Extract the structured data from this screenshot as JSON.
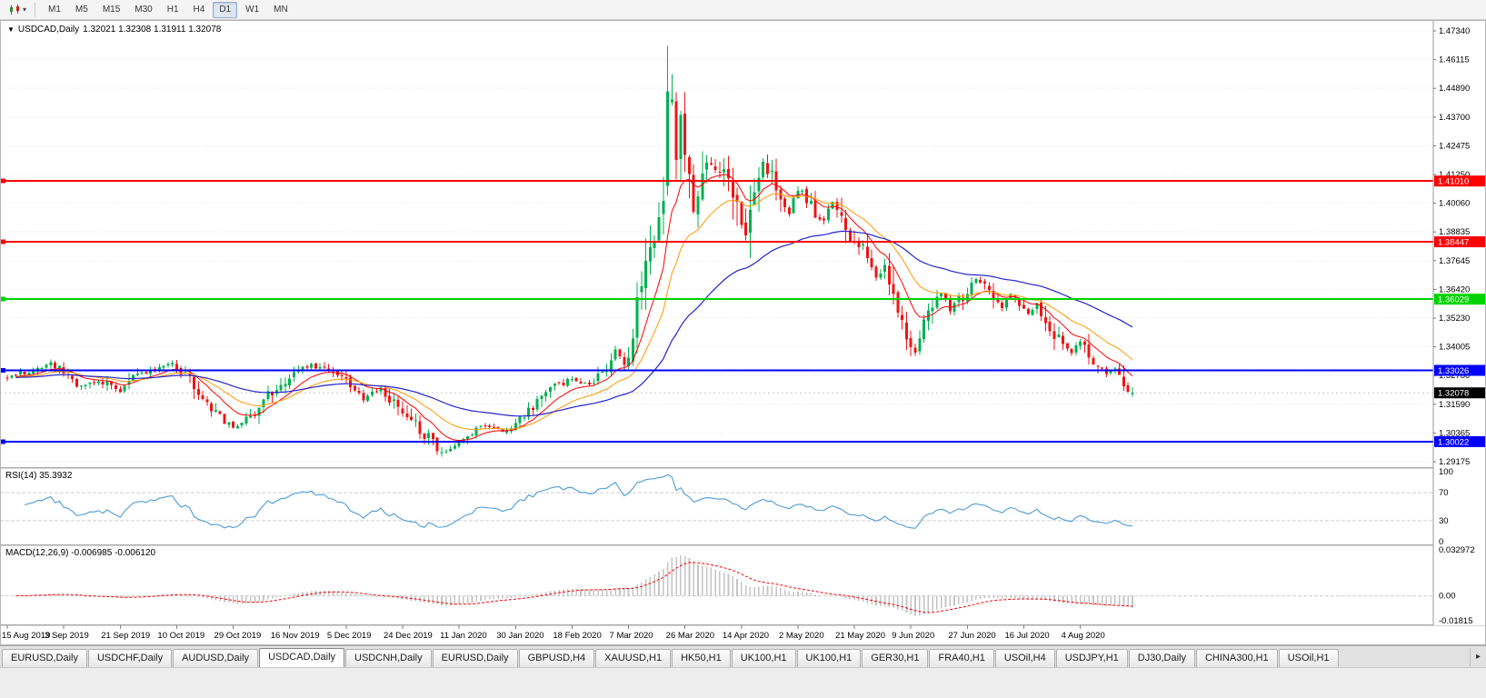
{
  "icons": {
    "title_marker": "▼",
    "toolbar_caret": "▾",
    "tab_scroll_right": "▸"
  },
  "toolbar": {
    "timeframes": [
      "M1",
      "M5",
      "M15",
      "M30",
      "H1",
      "H4",
      "D1",
      "W1",
      "MN"
    ],
    "active_timeframe": "D1"
  },
  "chart": {
    "title": "USDCAD,Daily",
    "ohlc_text": "1.32021 1.32308 1.31911 1.32078",
    "current_price": "1.32078"
  },
  "rsi_panel": {
    "label": "RSI(14) 35.3932",
    "axis_labels": [
      "100",
      "70",
      "30",
      "0"
    ],
    "axis_values": [
      100,
      70,
      30,
      0
    ],
    "dashed_levels": [
      70,
      30
    ]
  },
  "macd_panel": {
    "label": "MACD(12,26,9) -0.006985 -0.006120",
    "axis_labels": [
      "0.032972",
      "0.00",
      "-0.01815"
    ],
    "axis_values": [
      0.032972,
      0,
      -0.01815
    ]
  },
  "tabs": {
    "active_index": 3,
    "items": [
      "EURUSD,Daily",
      "USDCHF,Daily",
      "AUDUSD,Daily",
      "USDCAD,Daily",
      "USDCNH,Daily",
      "EURUSD,Daily",
      "GBPUSD,H4",
      "XAUUSD,H1",
      "HK50,H1",
      "UK100,H1",
      "UK100,H1",
      "GER30,H1",
      "FRA40,H1",
      "USOil,H4",
      "USDJPY,H1",
      "DJ30,Daily",
      "CHINA300,H1",
      "USOil,H1"
    ]
  },
  "colors": {
    "background": "#ffffff",
    "grid": "#e9e9e9",
    "candle_up": "#00b050",
    "candle_down": "#f01414",
    "bid_line": "#c8c8c8",
    "rsi_line": "#4f9bd5",
    "macd_histogram": "#c4c4c4",
    "macd_signal": "#ff0000",
    "axis_text": "#000000",
    "panel_border": "#a9a9a9",
    "marker_text": "#ffffff",
    "current_price_marker": "#000000"
  },
  "chart_data": {
    "type": "candlestick",
    "symbol": "USDCAD",
    "timeframe": "Daily",
    "title": "USDCAD,Daily",
    "bar_count": 260,
    "y_top": 1.4734,
    "y_bottom": 1.29175,
    "y_axis_labels": [
      "1.47340",
      "1.46115",
      "1.44890",
      "1.43700",
      "1.42475",
      "1.41250",
      "1.40060",
      "1.38835",
      "1.37645",
      "1.36420",
      "1.35230",
      "1.34005",
      "1.32780",
      "1.31590",
      "1.30365",
      "1.29175"
    ],
    "x_label_step": 13,
    "x_axis_labels": [
      "15 Aug 2019",
      "3 Sep 2019",
      "21 Sep 2019",
      "10 Oct 2019",
      "29 Oct 2019",
      "16 Nov 2019",
      "5 Dec 2019",
      "24 Dec 2019",
      "11 Jan 2020",
      "30 Jan 2020",
      "18 Feb 2020",
      "7 Mar 2020",
      "26 Mar 2020",
      "14 Apr 2020",
      "2 May 2020",
      "21 May 2020",
      "9 Jun 2020",
      "27 Jun 2020",
      "16 Jul 2020",
      "4 Aug 2020"
    ],
    "hlines": [
      {
        "price": 1.4101,
        "label": "1.41010",
        "color": "#ff0000"
      },
      {
        "price": 1.38447,
        "label": "1.38447",
        "color": "#ff0000"
      },
      {
        "price": 1.36029,
        "label": "1.36029",
        "color": "#00d400"
      },
      {
        "price": 1.33026,
        "label": "1.33026",
        "color": "#0000ff"
      },
      {
        "price": 1.30022,
        "label": "1.30022",
        "color": "#0000ff"
      }
    ],
    "moving_averages": [
      {
        "period": 10,
        "color": "#ff0000",
        "width": 1
      },
      {
        "period": 21,
        "color": "#ff9900",
        "width": 1
      },
      {
        "period": 55,
        "color": "#2323cc",
        "width": 1.2
      }
    ],
    "indicators": {
      "rsi": {
        "period": 14,
        "value": 35.3932
      },
      "macd": {
        "fast": 12,
        "slow": 26,
        "signal": 9,
        "value": -0.006985,
        "signal_value": -0.00612
      }
    },
    "last_bar": {
      "open": 1.32021,
      "high": 1.32308,
      "low": 1.31911,
      "close": 1.32078
    },
    "spike_bar": {
      "index": 152,
      "open": 1.408,
      "high": 1.467,
      "low": 1.404,
      "close": 1.448
    },
    "close_anchors": [
      [
        0,
        1.327
      ],
      [
        5,
        1.3305
      ],
      [
        10,
        1.333
      ],
      [
        13,
        1.329
      ],
      [
        17,
        1.3235
      ],
      [
        21,
        1.3262
      ],
      [
        26,
        1.3215
      ],
      [
        30,
        1.3282
      ],
      [
        34,
        1.331
      ],
      [
        38,
        1.3332
      ],
      [
        41,
        1.329
      ],
      [
        44,
        1.3195
      ],
      [
        48,
        1.3115
      ],
      [
        52,
        1.3062
      ],
      [
        55,
        1.3092
      ],
      [
        58,
        1.316
      ],
      [
        62,
        1.3232
      ],
      [
        66,
        1.3292
      ],
      [
        70,
        1.3322
      ],
      [
        74,
        1.3302
      ],
      [
        78,
        1.3262
      ],
      [
        82,
        1.3185
      ],
      [
        86,
        1.3225
      ],
      [
        90,
        1.3152
      ],
      [
        94,
        1.3082
      ],
      [
        98,
        1.2992
      ],
      [
        101,
        1.2958
      ],
      [
        104,
        1.2988
      ],
      [
        107,
        1.3042
      ],
      [
        110,
        1.3066
      ],
      [
        114,
        1.3046
      ],
      [
        118,
        1.3096
      ],
      [
        122,
        1.3162
      ],
      [
        126,
        1.3232
      ],
      [
        130,
        1.3266
      ],
      [
        134,
        1.3242
      ],
      [
        137,
        1.3302
      ],
      [
        140,
        1.3382
      ],
      [
        142,
        1.3342
      ],
      [
        144,
        1.3422
      ],
      [
        146,
        1.3662
      ],
      [
        148,
        1.3755
      ],
      [
        150,
        1.3925
      ],
      [
        151,
        1.4055
      ],
      [
        152,
        1.448
      ],
      [
        153,
        1.4425
      ],
      [
        154,
        1.4235
      ],
      [
        155,
        1.4355
      ],
      [
        156,
        1.4185
      ],
      [
        157,
        1.4062
      ],
      [
        158,
        1.3992
      ],
      [
        160,
        1.4092
      ],
      [
        162,
        1.4192
      ],
      [
        164,
        1.4132
      ],
      [
        166,
        1.4082
      ],
      [
        168,
        1.3992
      ],
      [
        170,
        1.3892
      ],
      [
        172,
        1.4092
      ],
      [
        174,
        1.4192
      ],
      [
        176,
        1.4112
      ],
      [
        178,
        1.4052
      ],
      [
        180,
        1.3962
      ],
      [
        182,
        1.4072
      ],
      [
        184,
        1.4032
      ],
      [
        186,
        1.3972
      ],
      [
        188,
        1.3932
      ],
      [
        190,
        1.4012
      ],
      [
        192,
        1.3942
      ],
      [
        194,
        1.3872
      ],
      [
        196,
        1.3832
      ],
      [
        198,
        1.3772
      ],
      [
        200,
        1.3692
      ],
      [
        202,
        1.3752
      ],
      [
        204,
        1.3622
      ],
      [
        206,
        1.3512
      ],
      [
        208,
        1.3422
      ],
      [
        209,
        1.3372
      ],
      [
        211,
        1.3492
      ],
      [
        213,
        1.3582
      ],
      [
        215,
        1.3622
      ],
      [
        217,
        1.3562
      ],
      [
        219,
        1.3592
      ],
      [
        221,
        1.3642
      ],
      [
        223,
        1.3682
      ],
      [
        225,
        1.3652
      ],
      [
        227,
        1.3602
      ],
      [
        229,
        1.3572
      ],
      [
        231,
        1.3622
      ],
      [
        233,
        1.3582
      ],
      [
        235,
        1.3542
      ],
      [
        237,
        1.3572
      ],
      [
        239,
        1.3512
      ],
      [
        241,
        1.3452
      ],
      [
        243,
        1.3412
      ],
      [
        245,
        1.3382
      ],
      [
        247,
        1.3422
      ],
      [
        249,
        1.3362
      ],
      [
        251,
        1.3312
      ],
      [
        253,
        1.3282
      ],
      [
        255,
        1.3322
      ],
      [
        257,
        1.3252
      ],
      [
        259,
        1.3208
      ]
    ]
  }
}
